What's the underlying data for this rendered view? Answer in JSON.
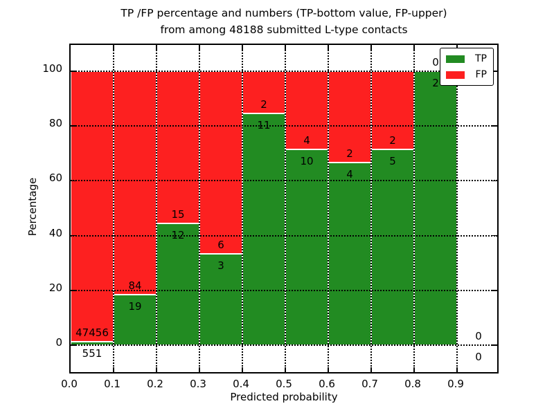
{
  "figure": {
    "title_line1": "TP /FP percentage and numbers (TP-bottom value, FP-upper)",
    "title_line2": "from among 48188 submitted L-type contacts",
    "xlabel": "Predicted probability",
    "ylabel": "Percentage"
  },
  "legend": {
    "items": [
      {
        "label": "TP",
        "color": "#228B22"
      },
      {
        "label": "FP",
        "color": "#fd2020"
      }
    ]
  },
  "chart_data": {
    "type": "bar",
    "stacked": true,
    "normalized_to_percent": true,
    "title": "TP /FP percentage and numbers (TP-bottom value, FP-upper) from among 48188 submitted L-type contacts",
    "xlabel": "Predicted probability",
    "ylabel": "Percentage",
    "total_contacts": 48188,
    "bin_edges": [
      0.0,
      0.1,
      0.2,
      0.3,
      0.4,
      0.5,
      0.6,
      0.7,
      0.8,
      0.9,
      1.0
    ],
    "series": [
      {
        "name": "TP",
        "color": "#228B22",
        "counts": [
          551,
          19,
          12,
          3,
          11,
          10,
          4,
          5,
          2,
          0
        ]
      },
      {
        "name": "FP",
        "color": "#fd2020",
        "counts": [
          47456,
          84,
          15,
          6,
          2,
          4,
          2,
          2,
          0,
          0
        ]
      }
    ],
    "tp_percent": [
      1.15,
      18.45,
      44.44,
      33.33,
      84.62,
      71.43,
      66.67,
      71.43,
      100.0,
      null
    ],
    "x_tick_labels": [
      "0.0",
      "0.1",
      "0.2",
      "0.3",
      "0.4",
      "0.5",
      "0.6",
      "0.7",
      "0.8",
      "0.9"
    ],
    "x_tick_values": [
      0.0,
      0.1,
      0.2,
      0.3,
      0.4,
      0.5,
      0.6,
      0.7,
      0.8,
      0.9
    ],
    "y_ticks": [
      0,
      20,
      40,
      60,
      80,
      100
    ],
    "xlim": [
      0.0,
      1.0
    ],
    "ylim": [
      -11,
      110
    ],
    "grid": true,
    "grid_style": "dotted-over-bars",
    "bar_edge_color": "#ffffff",
    "legend_position": "upper right"
  }
}
